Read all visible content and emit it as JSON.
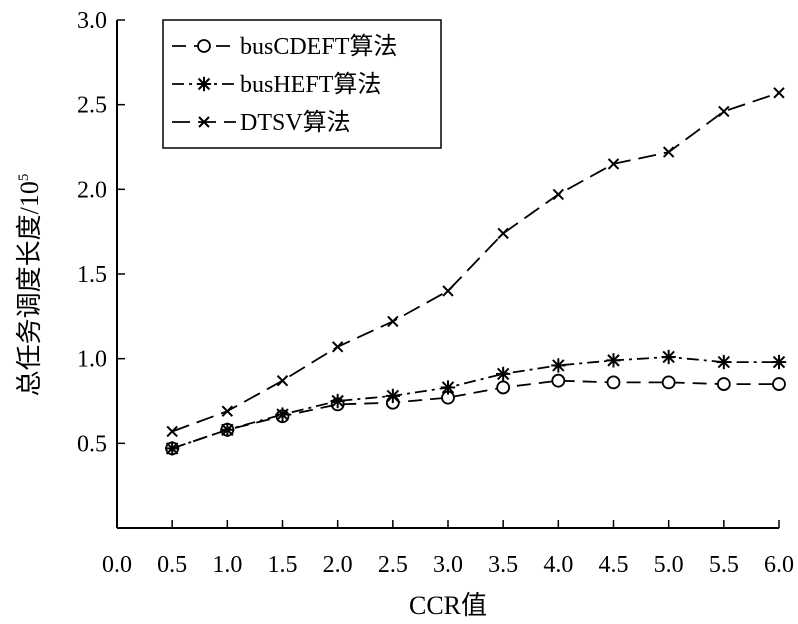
{
  "chart_data": {
    "type": "line",
    "title": "",
    "xlabel": "CCR值",
    "ylabel_main": "总任务调度长度/10",
    "ylabel_exponent": "5",
    "xlim": [
      0,
      6
    ],
    "ylim": [
      0,
      3
    ],
    "x_ticks": [
      "0.0",
      "0.5",
      "1.0",
      "1.5",
      "2.0",
      "2.5",
      "3.0",
      "3.5",
      "4.0",
      "4.5",
      "5.0",
      "5.5",
      "6.0"
    ],
    "y_ticks": [
      "0.5",
      "1.0",
      "1.5",
      "2.0",
      "2.5",
      "3.0"
    ],
    "grid": false,
    "legend_position": "top-left",
    "x": [
      0.5,
      1.0,
      1.5,
      2.0,
      2.5,
      3.0,
      3.5,
      4.0,
      4.5,
      5.0,
      5.5,
      6.0
    ],
    "series": [
      {
        "name": "busCDEFT算法",
        "marker": "circle",
        "dash": "dash",
        "values": [
          0.47,
          0.58,
          0.66,
          0.73,
          0.74,
          0.77,
          0.83,
          0.87,
          0.86,
          0.86,
          0.85,
          0.85
        ]
      },
      {
        "name": "busHEFT算法",
        "marker": "asterisk",
        "dash": "dashdot",
        "values": [
          0.47,
          0.58,
          0.67,
          0.75,
          0.78,
          0.83,
          0.91,
          0.96,
          0.99,
          1.01,
          0.98,
          0.98
        ]
      },
      {
        "name": "DTSV算法",
        "marker": "cross",
        "dash": "longdash",
        "values": [
          0.57,
          0.69,
          0.87,
          1.07,
          1.22,
          1.4,
          1.74,
          1.97,
          2.15,
          2.22,
          2.46,
          2.57
        ]
      }
    ]
  }
}
